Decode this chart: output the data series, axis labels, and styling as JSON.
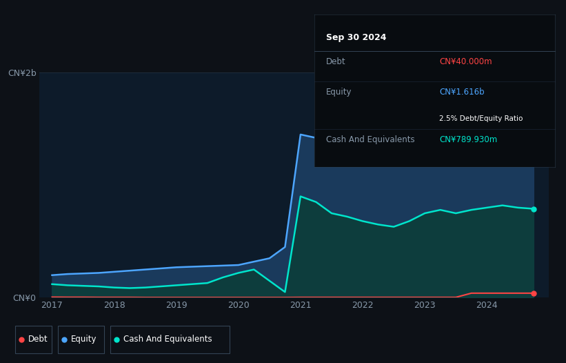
{
  "bg_color": "#0d1117",
  "plot_bg_color": "#0d1b2a",
  "tooltip": {
    "date": "Sep 30 2024",
    "debt_label": "Debt",
    "debt_value": "CN¥40.000m",
    "equity_label": "Equity",
    "equity_value": "CN¥1.616b",
    "ratio_text": "2.5% Debt/Equity Ratio",
    "cash_label": "Cash And Equivalents",
    "cash_value": "CN¥789.930m"
  },
  "ylim": [
    0,
    2000000000
  ],
  "yticks": [
    0,
    2000000000
  ],
  "ytick_labels": [
    "CN¥0",
    "CN¥2b"
  ],
  "grid_color": "#1e2d3d",
  "debt_color": "#ff4444",
  "equity_color": "#4da6ff",
  "cash_color": "#00e5cc",
  "equity_fill_color": "#1a3a5c",
  "cash_fill_color": "#0d3d3d",
  "years": [
    2017.0,
    2017.25,
    2017.5,
    2017.75,
    2018.0,
    2018.25,
    2018.5,
    2018.75,
    2019.0,
    2019.25,
    2019.5,
    2019.75,
    2020.0,
    2020.25,
    2020.5,
    2020.75,
    2021.0,
    2021.25,
    2021.5,
    2021.75,
    2022.0,
    2022.25,
    2022.5,
    2022.75,
    2023.0,
    2023.25,
    2023.5,
    2023.75,
    2024.0,
    2024.25,
    2024.5,
    2024.75
  ],
  "equity": [
    200000000,
    210000000,
    215000000,
    220000000,
    230000000,
    240000000,
    250000000,
    260000000,
    270000000,
    275000000,
    280000000,
    285000000,
    290000000,
    320000000,
    350000000,
    450000000,
    1450000000,
    1420000000,
    1380000000,
    1400000000,
    1350000000,
    1300000000,
    1280000000,
    1320000000,
    1380000000,
    1420000000,
    1500000000,
    1550000000,
    1600000000,
    1700000000,
    1850000000,
    1616000000
  ],
  "cash": [
    120000000,
    110000000,
    105000000,
    100000000,
    90000000,
    85000000,
    90000000,
    100000000,
    110000000,
    120000000,
    130000000,
    180000000,
    220000000,
    250000000,
    150000000,
    50000000,
    900000000,
    850000000,
    750000000,
    720000000,
    680000000,
    650000000,
    630000000,
    680000000,
    750000000,
    780000000,
    750000000,
    780000000,
    800000000,
    820000000,
    800000000,
    789930000
  ],
  "debt": [
    5000000,
    4000000,
    4000000,
    3000000,
    3000000,
    3000000,
    2000000,
    2000000,
    2000000,
    2000000,
    2000000,
    2000000,
    2000000,
    2000000,
    2000000,
    2000000,
    3000000,
    3000000,
    3000000,
    3000000,
    3000000,
    3000000,
    3000000,
    3000000,
    3000000,
    3000000,
    3000000,
    40000000,
    40000000,
    40000000,
    40000000,
    40000000
  ],
  "xtick_positions": [
    2017,
    2018,
    2019,
    2020,
    2021,
    2022,
    2023,
    2024
  ],
  "xtick_labels": [
    "2017",
    "2018",
    "2019",
    "2020",
    "2021",
    "2022",
    "2023",
    "2024"
  ]
}
